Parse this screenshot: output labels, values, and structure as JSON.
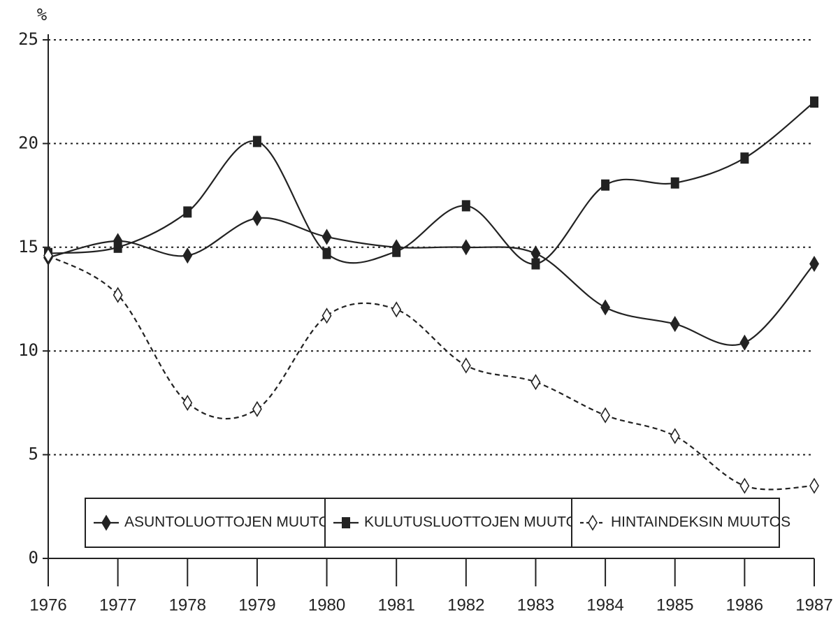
{
  "chart_data": {
    "type": "line",
    "y_label": "%",
    "x": [
      1976,
      1977,
      1978,
      1979,
      1980,
      1981,
      1982,
      1983,
      1984,
      1985,
      1986,
      1987
    ],
    "xlim": [
      1976,
      1987
    ],
    "xticks": [
      1976,
      1977,
      1978,
      1979,
      1980,
      1981,
      1982,
      1983,
      1984,
      1985,
      1986,
      1987
    ],
    "ylim": [
      0,
      25
    ],
    "yticks": [
      0,
      5,
      10,
      15,
      20,
      25
    ],
    "grid": true,
    "legend": "bottom",
    "series": [
      {
        "name": "ASUNTOLUOTTOJEN MUUTOS",
        "color": "#222222",
        "marker": "diamond",
        "dash": false,
        "values": [
          14.5,
          15.3,
          14.6,
          16.4,
          15.5,
          15.0,
          15.0,
          14.7,
          12.1,
          11.3,
          10.4,
          14.2
        ]
      },
      {
        "name": "KULUTUSLUOTTOJEN MUUTOS",
        "color": "#222222",
        "marker": "square",
        "dash": false,
        "values": [
          14.7,
          15.0,
          16.7,
          20.1,
          14.7,
          14.8,
          17.0,
          14.2,
          18.0,
          18.1,
          19.3,
          22.0
        ]
      },
      {
        "name": "HINTAINDEKSIN MUUTOS",
        "color": "#222222",
        "marker": "open-diamond",
        "dash": true,
        "values": [
          14.6,
          12.7,
          7.5,
          7.2,
          11.7,
          12.0,
          9.3,
          8.5,
          6.9,
          5.9,
          3.5,
          3.5
        ]
      }
    ]
  }
}
